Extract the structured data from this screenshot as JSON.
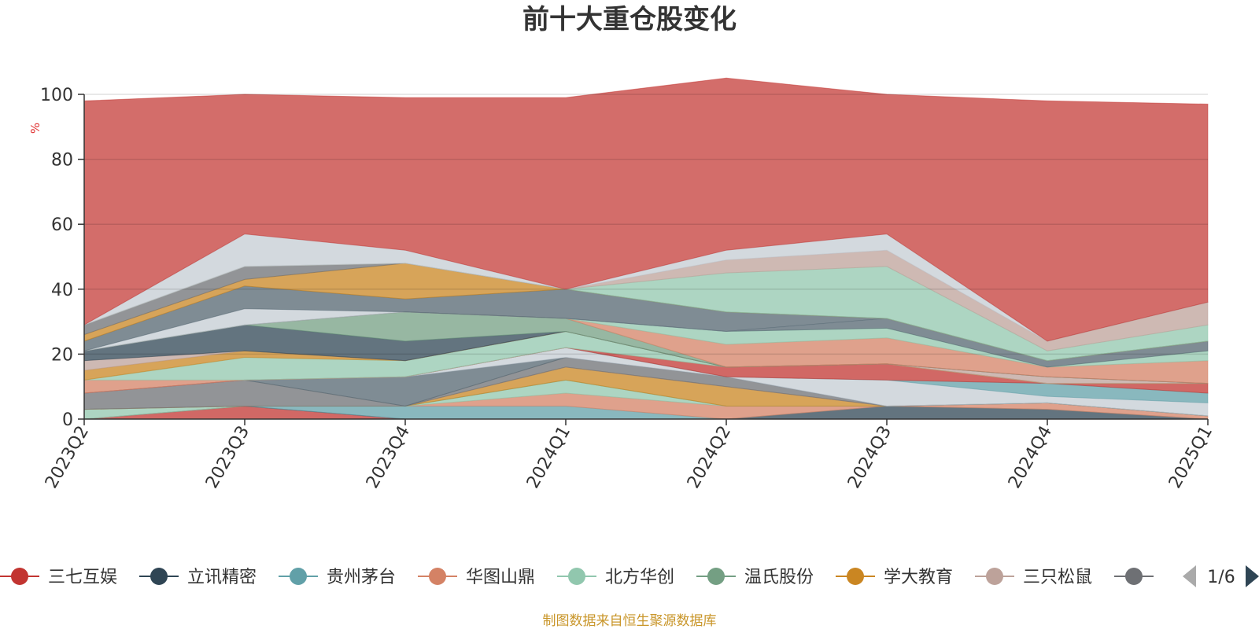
{
  "chart_data": {
    "type": "area",
    "title": "前十大重仓股变化",
    "ylabel": "%",
    "ylim": [
      0,
      100
    ],
    "y_ticks": [
      "0",
      "20",
      "40",
      "60",
      "80",
      "100"
    ],
    "categories": [
      "2023Q2",
      "2023Q3",
      "2023Q4",
      "2024Q1",
      "2024Q2",
      "2024Q3",
      "2024Q4",
      "2025Q1"
    ],
    "grid": true,
    "legend_position": "bottom",
    "series": [
      {
        "name": "三七互娱",
        "color": "#c23531",
        "values": [
          0,
          4,
          0,
          0,
          0,
          0,
          0,
          0
        ]
      },
      {
        "name": "立讯精密",
        "color": "#2f4554",
        "values": [
          0,
          0,
          0,
          0,
          0,
          4,
          3,
          0
        ]
      },
      {
        "name": "贵州茅台",
        "color": "#61a0a8",
        "values": [
          0,
          0,
          4,
          4,
          0,
          0,
          0,
          0
        ]
      },
      {
        "name": "华图山鼎",
        "color": "#d48265",
        "values": [
          0,
          0,
          0,
          4,
          4,
          0,
          2,
          1
        ]
      },
      {
        "name": "北方华创",
        "color": "#91c7ae",
        "values": [
          3,
          0,
          0,
          4,
          0,
          0,
          0,
          0
        ]
      },
      {
        "name": "温氏股份",
        "color": "#749f83",
        "values": [
          0,
          0,
          0,
          0,
          0,
          0,
          0,
          0
        ]
      },
      {
        "name": "学大教育",
        "color": "#ca8622",
        "values": [
          0,
          0,
          0,
          4,
          6,
          0,
          0,
          0
        ]
      },
      {
        "name": "三只松鼠",
        "color": "#bda29a",
        "values": [
          0,
          0,
          0,
          0,
          0,
          0,
          0,
          0
        ]
      },
      {
        "name": "",
        "color": "#6e7074",
        "values": [
          5,
          8,
          0,
          3,
          3,
          0,
          0,
          0
        ]
      },
      {
        "name": "",
        "color": "#546570",
        "values": [
          0,
          0,
          9,
          0,
          0,
          0,
          0,
          0
        ]
      },
      {
        "name": "",
        "color": "#c4ccd3",
        "values": [
          0,
          0,
          0,
          3,
          0,
          8,
          2,
          4
        ]
      },
      {
        "name": "",
        "color": "#61a0a8",
        "values": [
          0,
          0,
          0,
          0,
          0,
          0,
          4,
          3
        ]
      },
      {
        "name": "",
        "color": "#c23531",
        "values": [
          0,
          0,
          0,
          0,
          3,
          5,
          0,
          3
        ]
      },
      {
        "name": "",
        "color": "#d48265",
        "values": [
          4,
          0,
          0,
          0,
          0,
          0,
          0,
          0
        ]
      },
      {
        "name": "",
        "color": "#91c7ae",
        "values": [
          0,
          7,
          5,
          5,
          0,
          0,
          0,
          0
        ]
      },
      {
        "name": "",
        "color": "#ca8622",
        "values": [
          3,
          2,
          0,
          0,
          0,
          0,
          0,
          0
        ]
      },
      {
        "name": "",
        "color": "#bda29a",
        "values": [
          3,
          0,
          0,
          0,
          0,
          0,
          2,
          0
        ]
      },
      {
        "name": "",
        "color": "#2f4554",
        "values": [
          3,
          8,
          6,
          0,
          0,
          0,
          0,
          0
        ]
      },
      {
        "name": "",
        "color": "#749f83",
        "values": [
          0,
          0,
          9,
          4,
          0,
          0,
          0,
          0
        ]
      },
      {
        "name": "",
        "color": "#d48265",
        "values": [
          0,
          0,
          0,
          0,
          7,
          8,
          3,
          7
        ]
      },
      {
        "name": "",
        "color": "#91c7ae",
        "values": [
          0,
          0,
          0,
          0,
          4,
          3,
          0,
          3
        ]
      },
      {
        "name": "",
        "color": "#546570",
        "values": [
          0,
          0,
          0,
          0,
          0,
          3,
          2,
          3
        ]
      },
      {
        "name": "",
        "color": "#c4ccd3",
        "values": [
          0,
          5,
          0,
          0,
          0,
          0,
          0,
          0
        ]
      },
      {
        "name": "",
        "color": "#546570",
        "values": [
          3,
          7,
          4,
          9,
          6,
          0,
          0,
          0
        ]
      },
      {
        "name": "",
        "color": "#ca8622",
        "values": [
          2,
          2,
          11,
          0,
          0,
          0,
          0,
          0
        ]
      },
      {
        "name": "",
        "color": "#6e7074",
        "values": [
          3,
          4,
          0,
          0,
          0,
          0,
          0,
          0
        ]
      },
      {
        "name": "",
        "color": "#91c7ae",
        "values": [
          0,
          0,
          0,
          0,
          12,
          16,
          3,
          5
        ]
      },
      {
        "name": "",
        "color": "#bda29a",
        "values": [
          0,
          0,
          0,
          0,
          4,
          5,
          3,
          7
        ]
      },
      {
        "name": "",
        "color": "#c4ccd3",
        "values": [
          0,
          10,
          4,
          0,
          3,
          5,
          0,
          0
        ]
      },
      {
        "name": "",
        "color": "#c23531",
        "values": [
          69,
          43,
          47,
          59,
          53,
          43,
          74,
          61
        ]
      }
    ]
  },
  "legend": {
    "items": [
      {
        "label": "三七互娱",
        "color": "#c23531"
      },
      {
        "label": "立讯精密",
        "color": "#2f4554"
      },
      {
        "label": "贵州茅台",
        "color": "#61a0a8"
      },
      {
        "label": "华图山鼎",
        "color": "#d48265"
      },
      {
        "label": "北方华创",
        "color": "#91c7ae"
      },
      {
        "label": "温氏股份",
        "color": "#749f83"
      },
      {
        "label": "学大教育",
        "color": "#ca8622"
      },
      {
        "label": "三只松鼠",
        "color": "#bda29a"
      },
      {
        "label": "",
        "color": "#6e7074"
      }
    ],
    "page_indicator": "1/6"
  },
  "source_note": "制图数据来自恒生聚源数据库",
  "colors": {
    "axis": "#333333",
    "unit_label": "#e03030",
    "source_note": "#c9962a",
    "pager_disabled": "#aaaaaa",
    "pager_active": "#2f4554"
  }
}
